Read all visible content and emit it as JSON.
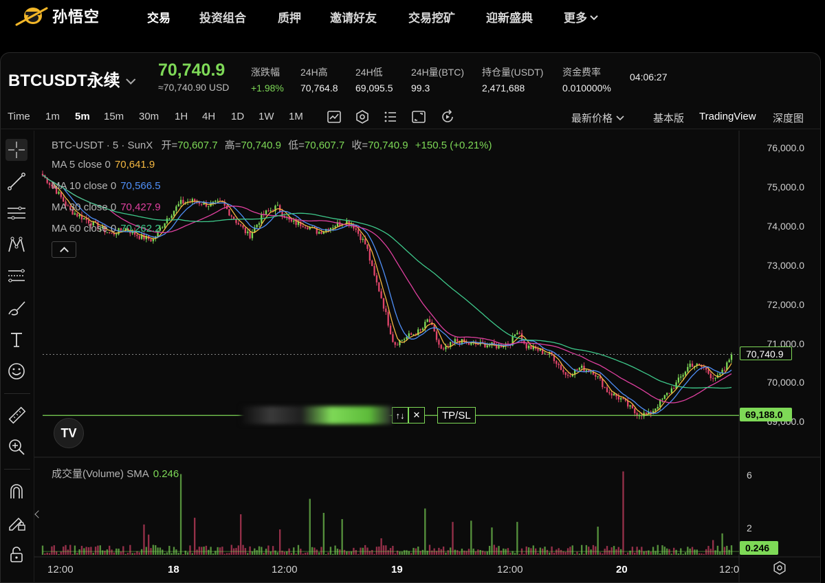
{
  "brand": {
    "name": "孙悟空"
  },
  "nav": {
    "items": [
      "交易",
      "投资组合",
      "质押",
      "邀请好友",
      "交易挖矿",
      "迎新盛典",
      "更多"
    ]
  },
  "ticker": {
    "symbol": "BTCUSDT永续",
    "price": "70,740.9",
    "price_usd": "≈70,740.90 USD",
    "stats": [
      {
        "label": "涨跌幅",
        "value": "+1.98%",
        "up": true
      },
      {
        "label": "24H高",
        "value": "70,764.8"
      },
      {
        "label": "24H低",
        "value": "69,095.5"
      },
      {
        "label": "24H量(BTC)",
        "value": "99.3"
      },
      {
        "label": "持仓量(USDT)",
        "value": "2,471,688"
      },
      {
        "label": "资金费率",
        "value": "0.010000%"
      }
    ],
    "clock": "04:06:27"
  },
  "toolbar": {
    "time_label": "Time",
    "intervals": [
      "1m",
      "5m",
      "15m",
      "30m",
      "1H",
      "4H",
      "1D",
      "1W",
      "1M"
    ],
    "active_interval": "5m",
    "icons": [
      "indicator-icon",
      "settings-hex-icon",
      "layout-list-icon",
      "fullscreen-icon",
      "replay-icon"
    ],
    "price_mode": "最新价格",
    "views": [
      "基本版",
      "TradingView",
      "深度图"
    ],
    "active_view": "TradingView"
  },
  "tools": [
    "crosshair-icon",
    "trend-line-icon",
    "horizontal-lines-icon",
    "pattern-icon",
    "fib-icon",
    "brush-icon",
    "text-icon",
    "emoji-icon",
    "ruler-icon",
    "zoom-in-icon",
    "magnet-icon",
    "lock-pencil-icon",
    "lock-icon"
  ],
  "legend": {
    "title": "BTC-USDT · 5 · SunX",
    "open_label": "开=",
    "open": "70,607.7",
    "high_label": "高=",
    "high": "70,740.9",
    "low_label": "低=",
    "low": "70,607.7",
    "close_label": "收=",
    "close": "70,740.9",
    "change": "+150.5 (+0.21%)",
    "ma": [
      {
        "label": "MA 5 close 0",
        "value": "70,641.9",
        "color": "#f5b841"
      },
      {
        "label": "MA 10 close 0",
        "value": "70,566.5",
        "color": "#4f8ff7"
      },
      {
        "label": "MA 30 close 0",
        "value": "70,427.9",
        "color": "#e040a0"
      },
      {
        "label": "MA 60 close 0",
        "value": "70,262.2",
        "color": "#3ec98b"
      }
    ]
  },
  "axis": {
    "price_ticks": [
      "76,000.0",
      "75,000.0",
      "74,000.0",
      "73,000.0",
      "72,000.0",
      "71,000.0",
      "70,000.0",
      "69,000.0"
    ],
    "current_price_tag": "70,740.9",
    "order_price_tag": "69,188.0",
    "volume_ticks": [
      "6",
      "2"
    ],
    "volume_tag": "0.246",
    "time_ticks": [
      "12:00",
      "18",
      "12:00",
      "19",
      "12:00",
      "20",
      "12:0"
    ]
  },
  "order_line": {
    "tp_sl_label": "TP/SL",
    "swap_label": "↑↓",
    "close_label": "✕"
  },
  "volume": {
    "label": "成交量(Volume) SMA",
    "value": "0.246"
  },
  "colors": {
    "up": "#7ed957",
    "down": "#e0456b",
    "accent": "#7ed957"
  },
  "chart_data": {
    "type": "candlestick",
    "title": "BTC-USDT · 5 · SunX",
    "ylim": [
      68800,
      76200
    ],
    "x_ticks": [
      "12:00",
      "18",
      "12:00",
      "19",
      "12:00",
      "20",
      "12:0"
    ],
    "close_path": [
      [
        0,
        75300
      ],
      [
        0.02,
        74900
      ],
      [
        0.04,
        74400
      ],
      [
        0.06,
        74200
      ],
      [
        0.08,
        74000
      ],
      [
        0.1,
        73800
      ],
      [
        0.12,
        73950
      ],
      [
        0.14,
        73750
      ],
      [
        0.16,
        73650
      ],
      [
        0.18,
        74200
      ],
      [
        0.2,
        74600
      ],
      [
        0.22,
        74650
      ],
      [
        0.24,
        74550
      ],
      [
        0.26,
        74600
      ],
      [
        0.28,
        74150
      ],
      [
        0.3,
        73750
      ],
      [
        0.32,
        74300
      ],
      [
        0.34,
        74500
      ],
      [
        0.36,
        74100
      ],
      [
        0.38,
        74050
      ],
      [
        0.4,
        73850
      ],
      [
        0.42,
        74000
      ],
      [
        0.44,
        74150
      ],
      [
        0.45,
        74050
      ],
      [
        0.47,
        73500
      ],
      [
        0.48,
        72800
      ],
      [
        0.49,
        72300
      ],
      [
        0.51,
        71000
      ],
      [
        0.53,
        71200
      ],
      [
        0.55,
        71350
      ],
      [
        0.56,
        71650
      ],
      [
        0.57,
        71200
      ],
      [
        0.58,
        70800
      ],
      [
        0.6,
        71100
      ],
      [
        0.62,
        71000
      ],
      [
        0.64,
        71000
      ],
      [
        0.66,
        70950
      ],
      [
        0.68,
        71050
      ],
      [
        0.69,
        71400
      ],
      [
        0.7,
        70950
      ],
      [
        0.72,
        70850
      ],
      [
        0.74,
        70700
      ],
      [
        0.76,
        70200
      ],
      [
        0.78,
        70400
      ],
      [
        0.8,
        70300
      ],
      [
        0.82,
        69800
      ],
      [
        0.84,
        69600
      ],
      [
        0.86,
        69250
      ],
      [
        0.88,
        69200
      ],
      [
        0.9,
        69600
      ],
      [
        0.92,
        70000
      ],
      [
        0.94,
        70500
      ],
      [
        0.96,
        70400
      ],
      [
        0.97,
        70200
      ],
      [
        0.98,
        70150
      ],
      [
        0.99,
        70350
      ],
      [
        1.0,
        70740.9
      ]
    ],
    "last": {
      "open": 70607.7,
      "high": 70740.9,
      "low": 70607.7,
      "close": 70740.9
    },
    "ma5": 70641.9,
    "ma10": 70566.5,
    "ma30": 70427.9,
    "ma60": 70262.2,
    "order_price": 69188.0,
    "volume_sma": 0.246,
    "volume_ylim": [
      0,
      7
    ]
  }
}
